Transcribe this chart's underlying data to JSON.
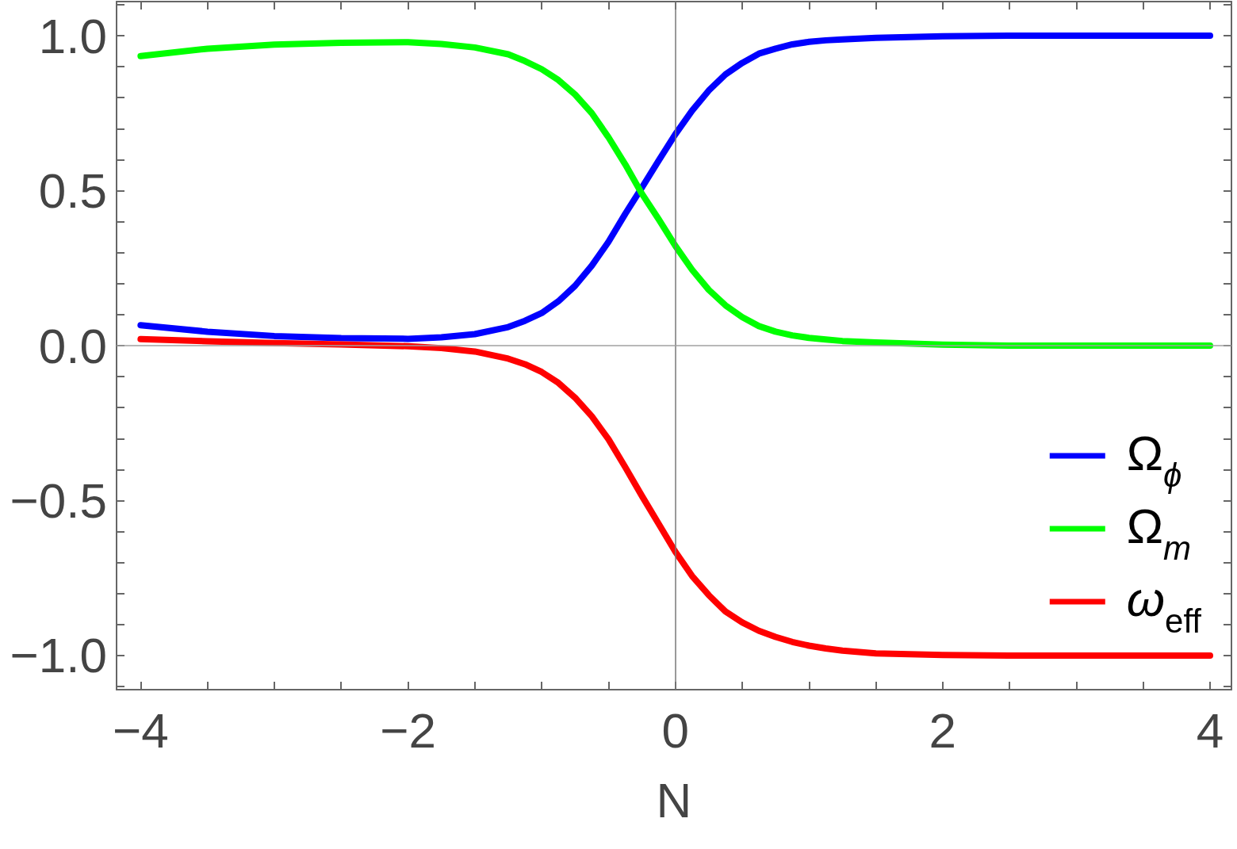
{
  "chart_data": {
    "type": "line",
    "xlabel": "N",
    "x": [
      -4,
      -3.5,
      -3,
      -2.5,
      -2,
      -1.75,
      -1.5,
      -1.25,
      -1.125,
      -1,
      -0.875,
      -0.75,
      -0.625,
      -0.5,
      -0.375,
      -0.25,
      -0.125,
      0,
      0.125,
      0.25,
      0.375,
      0.5,
      0.625,
      0.75,
      0.875,
      1,
      1.125,
      1.25,
      1.5,
      2,
      2.5,
      3,
      3.5,
      4
    ],
    "series": [
      {
        "name": "Ω$_{ϕ}$",
        "color": "#0000ff",
        "values": [
          0.066,
          0.045,
          0.031,
          0.024,
          0.022,
          0.027,
          0.037,
          0.06,
          0.08,
          0.105,
          0.143,
          0.193,
          0.258,
          0.335,
          0.425,
          0.51,
          0.597,
          0.682,
          0.758,
          0.823,
          0.875,
          0.912,
          0.942,
          0.958,
          0.972,
          0.98,
          0.985,
          0.988,
          0.993,
          0.998,
          1,
          1,
          1,
          1
        ]
      },
      {
        "name": "Ω$_{m}$",
        "color": "#00ff00",
        "values": [
          0.934,
          0.958,
          0.971,
          0.977,
          0.979,
          0.973,
          0.962,
          0.94,
          0.918,
          0.892,
          0.857,
          0.81,
          0.75,
          0.672,
          0.585,
          0.49,
          0.408,
          0.322,
          0.245,
          0.18,
          0.13,
          0.092,
          0.063,
          0.045,
          0.033,
          0.025,
          0.02,
          0.015,
          0.01,
          0.003,
          0,
          0,
          0,
          0
        ]
      },
      {
        "name": "ω$_{eff}$",
        "color": "#ff0000",
        "values": [
          0.021,
          0.014,
          0.008,
          0.004,
          -0.002,
          -0.008,
          -0.019,
          -0.042,
          -0.06,
          -0.085,
          -0.12,
          -0.168,
          -0.228,
          -0.302,
          -0.392,
          -0.485,
          -0.575,
          -0.665,
          -0.743,
          -0.805,
          -0.858,
          -0.893,
          -0.92,
          -0.94,
          -0.956,
          -0.968,
          -0.977,
          -0.984,
          -0.993,
          -0.998,
          -1,
          -1,
          -1,
          -1
        ]
      }
    ],
    "xlim": [
      -4.18,
      4.16
    ],
    "xticks": [
      {
        "value": -4,
        "label": "−4"
      },
      {
        "value": -3.5,
        "label": null
      },
      {
        "value": -3,
        "label": null
      },
      {
        "value": -2.5,
        "label": null
      },
      {
        "value": -2,
        "label": "−2"
      },
      {
        "value": -1.5,
        "label": null
      },
      {
        "value": -1,
        "label": null
      },
      {
        "value": -0.5,
        "label": null
      },
      0,
      {
        "value": 0.5,
        "label": null
      },
      {
        "value": 1,
        "label": null
      },
      {
        "value": 1.5,
        "label": null
      },
      2,
      {
        "value": 2.5,
        "label": null
      },
      {
        "value": 3,
        "label": null
      },
      {
        "value": 3.5,
        "label": null
      },
      4
    ],
    "ylim": [
      -1.11,
      1.11
    ],
    "yticks": [
      {
        "value": -1.1,
        "label": null
      },
      {
        "value": -1,
        "label": "−1.0"
      },
      {
        "value": -0.9,
        "label": null
      },
      {
        "value": -0.8,
        "label": null
      },
      {
        "value": -0.7,
        "label": null
      },
      {
        "value": -0.6,
        "label": null
      },
      {
        "value": -0.5,
        "label": "−0.5"
      },
      {
        "value": -0.4,
        "label": null
      },
      {
        "value": -0.3,
        "label": null
      },
      {
        "value": -0.2,
        "label": null
      },
      {
        "value": -0.1,
        "label": null
      },
      {
        "value": 0,
        "label": "0.0"
      },
      {
        "value": 0.1,
        "label": null
      },
      {
        "value": 0.2,
        "label": null
      },
      {
        "value": 0.3,
        "label": null
      },
      {
        "value": 0.4,
        "label": null
      },
      0.5,
      {
        "value": 0.6,
        "label": null
      },
      {
        "value": 0.7,
        "label": null
      },
      {
        "value": 0.8,
        "label": null
      },
      {
        "value": 0.9,
        "label": null
      },
      {
        "value": 1,
        "label": "1.0"
      },
      {
        "value": 1.1,
        "label": null
      }
    ],
    "ref_lines": [
      {
        "axis": "x",
        "value": 0,
        "color": "#777777"
      },
      {
        "axis": "y",
        "value": 0,
        "color": "#a0a0a0"
      }
    ],
    "legend": "right"
  }
}
